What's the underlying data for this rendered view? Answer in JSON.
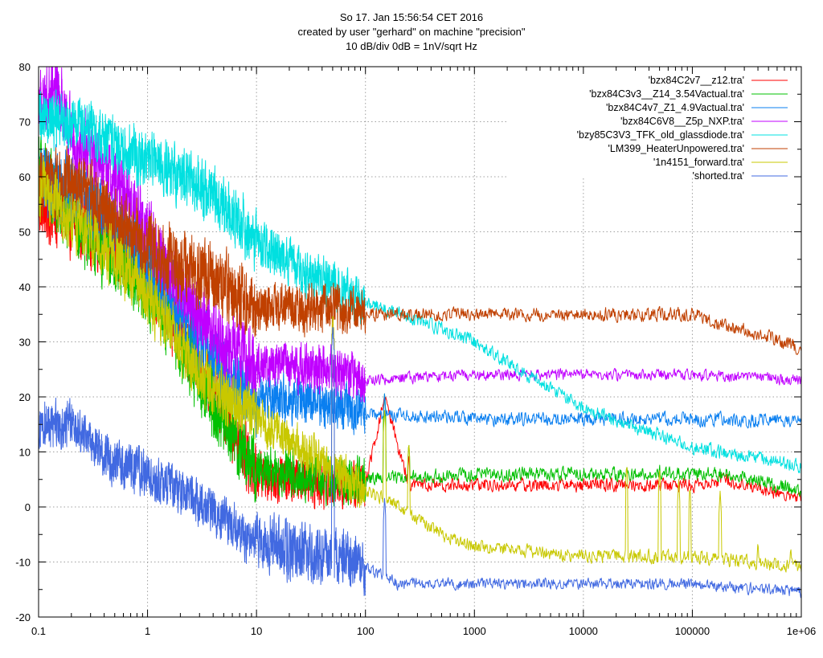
{
  "chart_data": {
    "type": "line",
    "title_lines": [
      "So 17. Jan 15:56:54 CET 2016",
      "created by user \"gerhard\" on machine \"precision\"",
      "10 dB/div   0dB = 1nV/sqrt Hz"
    ],
    "xlabel": "",
    "ylabel": "",
    "xscale": "log",
    "xlim": [
      0.1,
      1000000
    ],
    "ylim": [
      -20,
      80
    ],
    "x_ticks": [
      {
        "value": 0.1,
        "label": "0.1"
      },
      {
        "value": 1,
        "label": "1"
      },
      {
        "value": 10,
        "label": "10"
      },
      {
        "value": 100,
        "label": "100"
      },
      {
        "value": 1000,
        "label": "1000"
      },
      {
        "value": 10000,
        "label": "10000"
      },
      {
        "value": 100000,
        "label": "100000"
      },
      {
        "value": 1000000,
        "label": "1e+06"
      }
    ],
    "y_ticks": [
      {
        "value": 80,
        "label": "80"
      },
      {
        "value": 70,
        "label": "70"
      },
      {
        "value": 60,
        "label": "60"
      },
      {
        "value": 50,
        "label": "50"
      },
      {
        "value": 40,
        "label": "40"
      },
      {
        "value": 30,
        "label": "30"
      },
      {
        "value": 20,
        "label": "20"
      },
      {
        "value": 10,
        "label": "10"
      },
      {
        "value": 0,
        "label": "0"
      },
      {
        "value": -10,
        "label": "-10"
      },
      {
        "value": -20,
        "label": "-20"
      }
    ],
    "grid": true,
    "legend_position": "top-right",
    "series": [
      {
        "name": "'bzx84C2v7__z12.tra'",
        "color": "#ff0000",
        "noise_db": [
          6,
          4,
          1.2
        ],
        "x": [
          0.1,
          0.2,
          0.5,
          1,
          2,
          5,
          10,
          50,
          100,
          150,
          250,
          1000,
          10000,
          100000,
          200000,
          1000000
        ],
        "y": [
          55,
          52,
          48,
          42,
          32,
          18,
          6,
          4,
          4,
          20,
          4,
          4,
          4,
          4,
          5,
          1.5
        ],
        "spikes": [
          {
            "x": 150,
            "y": 20
          },
          {
            "x": 250,
            "y": 10
          },
          {
            "x": 180000,
            "y": 6
          }
        ]
      },
      {
        "name": "'bzx84C3v3__Z14_3.54Vactual.tra'",
        "color": "#00c000",
        "noise_db": [
          6,
          4,
          1.2
        ],
        "x": [
          0.1,
          0.2,
          0.5,
          1,
          2,
          5,
          10,
          50,
          100,
          1000,
          10000,
          100000,
          200000,
          1000000
        ],
        "y": [
          62,
          52,
          45,
          40,
          30,
          15,
          7,
          5,
          5,
          6,
          6,
          6,
          6,
          3
        ],
        "spikes": [
          {
            "x": 150,
            "y": 21
          },
          {
            "x": 250,
            "y": 12
          },
          {
            "x": 25000,
            "y": 8
          },
          {
            "x": 50000,
            "y": 8
          },
          {
            "x": 75000,
            "y": 7
          },
          {
            "x": 95000,
            "y": 6
          },
          {
            "x": 180000,
            "y": 7
          }
        ]
      },
      {
        "name": "'bzx84C4v7_Z1_4.9Vactual.tra'",
        "color": "#0a7ff0",
        "noise_db": [
          6,
          4,
          1.2
        ],
        "x": [
          0.1,
          0.2,
          0.5,
          1,
          2,
          5,
          10,
          50,
          100,
          1000,
          10000,
          100000,
          1000000
        ],
        "y": [
          60,
          58,
          52,
          45,
          36,
          25,
          20,
          19,
          17,
          16,
          16,
          16,
          15.5
        ],
        "spikes": [
          {
            "x": 150,
            "y": 21
          }
        ]
      },
      {
        "name": "'bzx84C6V8__Z5p_NXP.tra'",
        "color": "#c000ff",
        "noise_db": [
          6,
          4,
          1.0
        ],
        "x": [
          0.1,
          0.15,
          0.2,
          0.5,
          1,
          2,
          5,
          10,
          50,
          100,
          1000,
          10000,
          100000,
          1000000
        ],
        "y": [
          74,
          76,
          68,
          60,
          50,
          40,
          29,
          26,
          25,
          23,
          24,
          24,
          24,
          23
        ],
        "spikes": []
      },
      {
        "name": "'bzy85C3V3_TFK_old_glassdiode.tra'",
        "color": "#00e0e0",
        "noise_db": [
          5,
          4,
          1.2
        ],
        "x": [
          0.1,
          0.2,
          0.5,
          1,
          2,
          5,
          10,
          30,
          100,
          300,
          1000,
          3000,
          10000,
          100000,
          1000000
        ],
        "y": [
          71,
          70,
          66,
          63,
          60,
          55,
          48,
          42,
          37,
          34,
          30,
          24,
          18,
          11,
          7.5
        ],
        "spikes": []
      },
      {
        "name": "'LM399_HeaterUnpowered.tra'",
        "color": "#c04000",
        "noise_db": [
          6,
          4,
          1.2
        ],
        "x": [
          0.1,
          0.2,
          0.5,
          1,
          2,
          5,
          10,
          50,
          100,
          1000,
          10000,
          100000,
          200000,
          500000,
          1000000
        ],
        "y": [
          58,
          60,
          52,
          47,
          44,
          40,
          36,
          36,
          35,
          35,
          35,
          35,
          33,
          31,
          28.5
        ],
        "spikes": []
      },
      {
        "name": "'1n4151_forward.tra'",
        "color": "#c8c800",
        "noise_db": [
          5,
          3.5,
          1.2
        ],
        "x": [
          0.1,
          0.5,
          1,
          2,
          3,
          5,
          8,
          10,
          20,
          50,
          100,
          200,
          500,
          1000,
          3000,
          10000,
          100000,
          1000000
        ],
        "y": [
          58,
          45,
          38,
          30,
          24,
          20,
          18,
          16,
          12,
          7,
          3,
          0,
          -5,
          -7,
          -8,
          -9,
          -9,
          -11
        ],
        "spikes": [
          {
            "x": 50,
            "y": 35
          },
          {
            "x": 150,
            "y": 18
          },
          {
            "x": 250,
            "y": 12
          },
          {
            "x": 25000,
            "y": 8
          },
          {
            "x": 50000,
            "y": 7
          },
          {
            "x": 75000,
            "y": 5
          },
          {
            "x": 95000,
            "y": 4
          },
          {
            "x": 180000,
            "y": 3
          },
          {
            "x": 400000,
            "y": -6
          },
          {
            "x": 800000,
            "y": -7
          }
        ]
      },
      {
        "name": "'shorted.tra'",
        "color": "#4169e1",
        "noise_db": [
          4,
          5,
          1.0
        ],
        "x": [
          0.1,
          0.2,
          0.5,
          1,
          2,
          5,
          8,
          10,
          20,
          50,
          100,
          200,
          1000,
          10000,
          100000,
          1000000
        ],
        "y": [
          15,
          15,
          8,
          6,
          3,
          -2,
          -6,
          -5,
          -8,
          -9,
          -11,
          -14,
          -14,
          -14,
          -14,
          -15.5
        ],
        "spikes": [
          {
            "x": 50,
            "y": 33
          },
          {
            "x": 150,
            "y": 2
          },
          {
            "x": 8,
            "y": -19
          }
        ]
      }
    ]
  }
}
